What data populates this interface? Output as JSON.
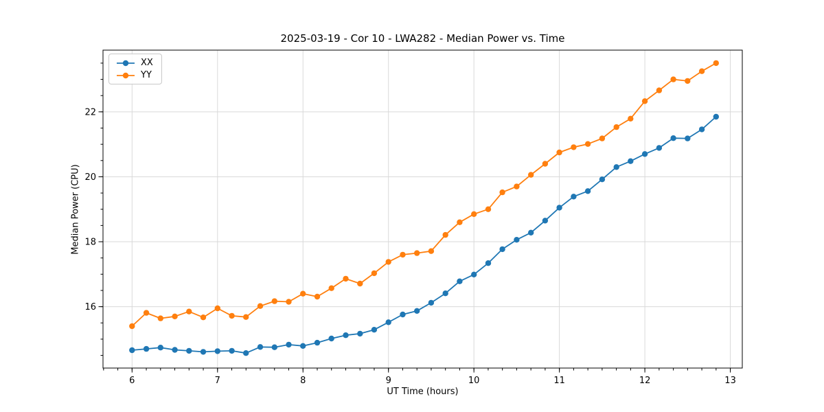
{
  "figure": {
    "title": "2025-03-19 - Cor 10 - LWA282 - Median Power vs. Time"
  },
  "chart_data": {
    "type": "line",
    "title": "2025-03-19 - Cor 10 - LWA282 - Median Power vs. Time",
    "xlabel": "UT Time (hours)",
    "ylabel": "Median Power (CPU)",
    "xlim": [
      5.66,
      13.14
    ],
    "ylim": [
      14.11,
      23.9
    ],
    "x_major_ticks": [
      6,
      7,
      8,
      9,
      10,
      11,
      12,
      13
    ],
    "y_major_ticks": [
      16,
      18,
      20,
      22
    ],
    "x_minor_step": 0.1667,
    "y_minor_step": 0.5,
    "grid": "major-only",
    "grid_color": "#d9d9d9",
    "legend_position": "upper-left",
    "x": [
      6.0,
      6.167,
      6.333,
      6.5,
      6.667,
      6.833,
      7.0,
      7.167,
      7.333,
      7.5,
      7.667,
      7.833,
      8.0,
      8.167,
      8.333,
      8.5,
      8.667,
      8.833,
      9.0,
      9.167,
      9.333,
      9.5,
      9.667,
      9.833,
      10.0,
      10.167,
      10.333,
      10.5,
      10.667,
      10.833,
      11.0,
      11.167,
      11.333,
      11.5,
      11.667,
      11.833,
      12.0,
      12.167,
      12.333,
      12.5,
      12.667,
      12.833
    ],
    "series": [
      {
        "name": "XX",
        "color": "#1f77b4",
        "values": [
          14.66,
          14.7,
          14.74,
          14.67,
          14.64,
          14.61,
          14.63,
          14.64,
          14.57,
          14.76,
          14.75,
          14.83,
          14.79,
          14.89,
          15.02,
          15.12,
          15.17,
          15.29,
          15.52,
          15.76,
          15.87,
          16.12,
          16.41,
          16.78,
          16.99,
          17.34,
          17.77,
          18.06,
          18.28,
          18.65,
          19.05,
          19.39,
          19.56,
          19.92,
          20.3,
          20.48,
          20.7,
          20.89,
          21.19,
          21.18,
          21.46,
          21.85
        ]
      },
      {
        "name": "YY",
        "color": "#ff7f0e",
        "values": [
          15.4,
          15.81,
          15.64,
          15.7,
          15.85,
          15.67,
          15.95,
          15.72,
          15.68,
          16.02,
          16.17,
          16.15,
          16.4,
          16.31,
          16.57,
          16.86,
          16.71,
          17.03,
          17.38,
          17.6,
          17.65,
          17.71,
          18.21,
          18.6,
          18.85,
          19.0,
          19.52,
          19.7,
          20.06,
          20.4,
          20.75,
          20.91,
          21.01,
          21.18,
          21.53,
          21.79,
          22.33,
          22.66,
          23.0,
          22.95,
          23.25,
          23.5
        ]
      }
    ]
  }
}
